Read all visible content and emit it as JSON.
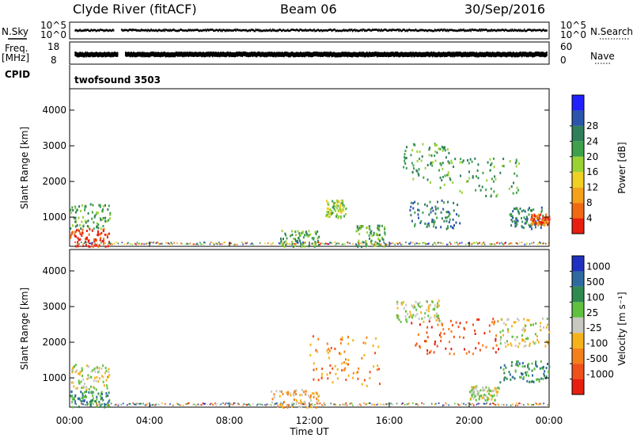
{
  "header": {
    "station": "Clyde River (fitACF)",
    "beam": "Beam 06",
    "date": "30/Sep/2016"
  },
  "strip": {
    "nsky_label": "N.Sky",
    "nsky_ticks": [
      "10^5",
      "10^0"
    ],
    "nsearch_label": "N.Search",
    "nsearch_ticks": [
      "10^5",
      "10^0"
    ],
    "freq_label_1": "Freq.",
    "freq_label_2": "[MHz]",
    "freq_ticks": [
      "18",
      "8"
    ],
    "nave_label": "Nave",
    "nave_ticks": [
      "60",
      "0"
    ],
    "cpid_label": "CPID",
    "cpid_value": "twofsound 3503"
  },
  "chart_data": [
    {
      "type": "heatmap",
      "name": "power",
      "ylabel": "Slant Range [km]",
      "ylim": [
        180,
        4600
      ],
      "yticks": [
        "1000",
        "2000",
        "3000",
        "4000"
      ],
      "xlim": [
        0,
        24
      ],
      "colorbar_label": "Power [dB]",
      "colorbar_ticks": [
        "4",
        "8",
        "12",
        "16",
        "20",
        "24",
        "28"
      ],
      "colors": [
        "#2020ff",
        "#2a55aa",
        "#2f7f5a",
        "#3ea04a",
        "#9bd233",
        "#f0d020",
        "#f5a21a",
        "#f06a12",
        "#e81e10"
      ],
      "regions": [
        {
          "t0": 0.0,
          "t1": 2.0,
          "r0": 200,
          "r1": 700,
          "level": 8
        },
        {
          "t0": 0.0,
          "t1": 2.0,
          "r0": 700,
          "r1": 1400,
          "level": 3
        },
        {
          "t0": 10.5,
          "t1": 12.5,
          "r0": 200,
          "r1": 650,
          "level": 3
        },
        {
          "t0": 12.8,
          "t1": 13.8,
          "r0": 1000,
          "r1": 1500,
          "level": 4
        },
        {
          "t0": 14.3,
          "t1": 15.8,
          "r0": 200,
          "r1": 800,
          "level": 3
        },
        {
          "t0": 16.5,
          "t1": 19.0,
          "r0": 2000,
          "r1": 3100,
          "level": 3
        },
        {
          "t0": 18.5,
          "t1": 22.5,
          "r0": 1600,
          "r1": 2700,
          "level": 3
        },
        {
          "t0": 17.0,
          "t1": 19.5,
          "r0": 700,
          "r1": 1500,
          "level": 2
        },
        {
          "t0": 22.0,
          "t1": 23.8,
          "r0": 700,
          "r1": 1300,
          "level": 2
        },
        {
          "t0": 23.0,
          "t1": 24.0,
          "r0": 800,
          "r1": 1100,
          "level": 7
        }
      ]
    },
    {
      "type": "heatmap",
      "name": "velocity",
      "ylabel": "Slant Range [km]",
      "ylim": [
        180,
        4600
      ],
      "yticks": [
        "1000",
        "2000",
        "3000",
        "4000"
      ],
      "xlim": [
        0,
        24
      ],
      "xticks": [
        "00:00",
        "04:00",
        "08:00",
        "12:00",
        "16:00",
        "20:00",
        "00:00"
      ],
      "xlabel": "Time UT",
      "colorbar_label": "Velocity [m s⁻¹]",
      "colorbar_ticks": [
        "1000",
        "500",
        "100",
        "25",
        "-25",
        "-100",
        "-500",
        "-1000"
      ],
      "colors": [
        "#2030c0",
        "#2e6aa0",
        "#2f8a50",
        "#60c040",
        "#c8c8c0",
        "#f5b21a",
        "#f5801a",
        "#f0501a",
        "#e81e10"
      ],
      "regions": [
        {
          "t0": 0.0,
          "t1": 2.0,
          "r0": 700,
          "r1": 1400,
          "level": 4
        },
        {
          "t0": 0.0,
          "t1": 2.0,
          "r0": 200,
          "r1": 650,
          "level": 2
        },
        {
          "t0": 10.0,
          "t1": 12.6,
          "r0": 200,
          "r1": 700,
          "level": 5
        },
        {
          "t0": 12.0,
          "t1": 15.5,
          "r0": 800,
          "r1": 2200,
          "level": 6
        },
        {
          "t0": 17.0,
          "t1": 21.5,
          "r0": 1700,
          "r1": 2700,
          "level": 7
        },
        {
          "t0": 16.3,
          "t1": 18.5,
          "r0": 2600,
          "r1": 3200,
          "level": 4
        },
        {
          "t0": 21.5,
          "t1": 24.0,
          "r0": 1900,
          "r1": 2700,
          "level": 4
        },
        {
          "t0": 21.5,
          "t1": 24.0,
          "r0": 900,
          "r1": 1500,
          "level": 2
        },
        {
          "t0": 20.0,
          "t1": 21.5,
          "r0": 400,
          "r1": 800,
          "level": 4
        }
      ]
    }
  ]
}
